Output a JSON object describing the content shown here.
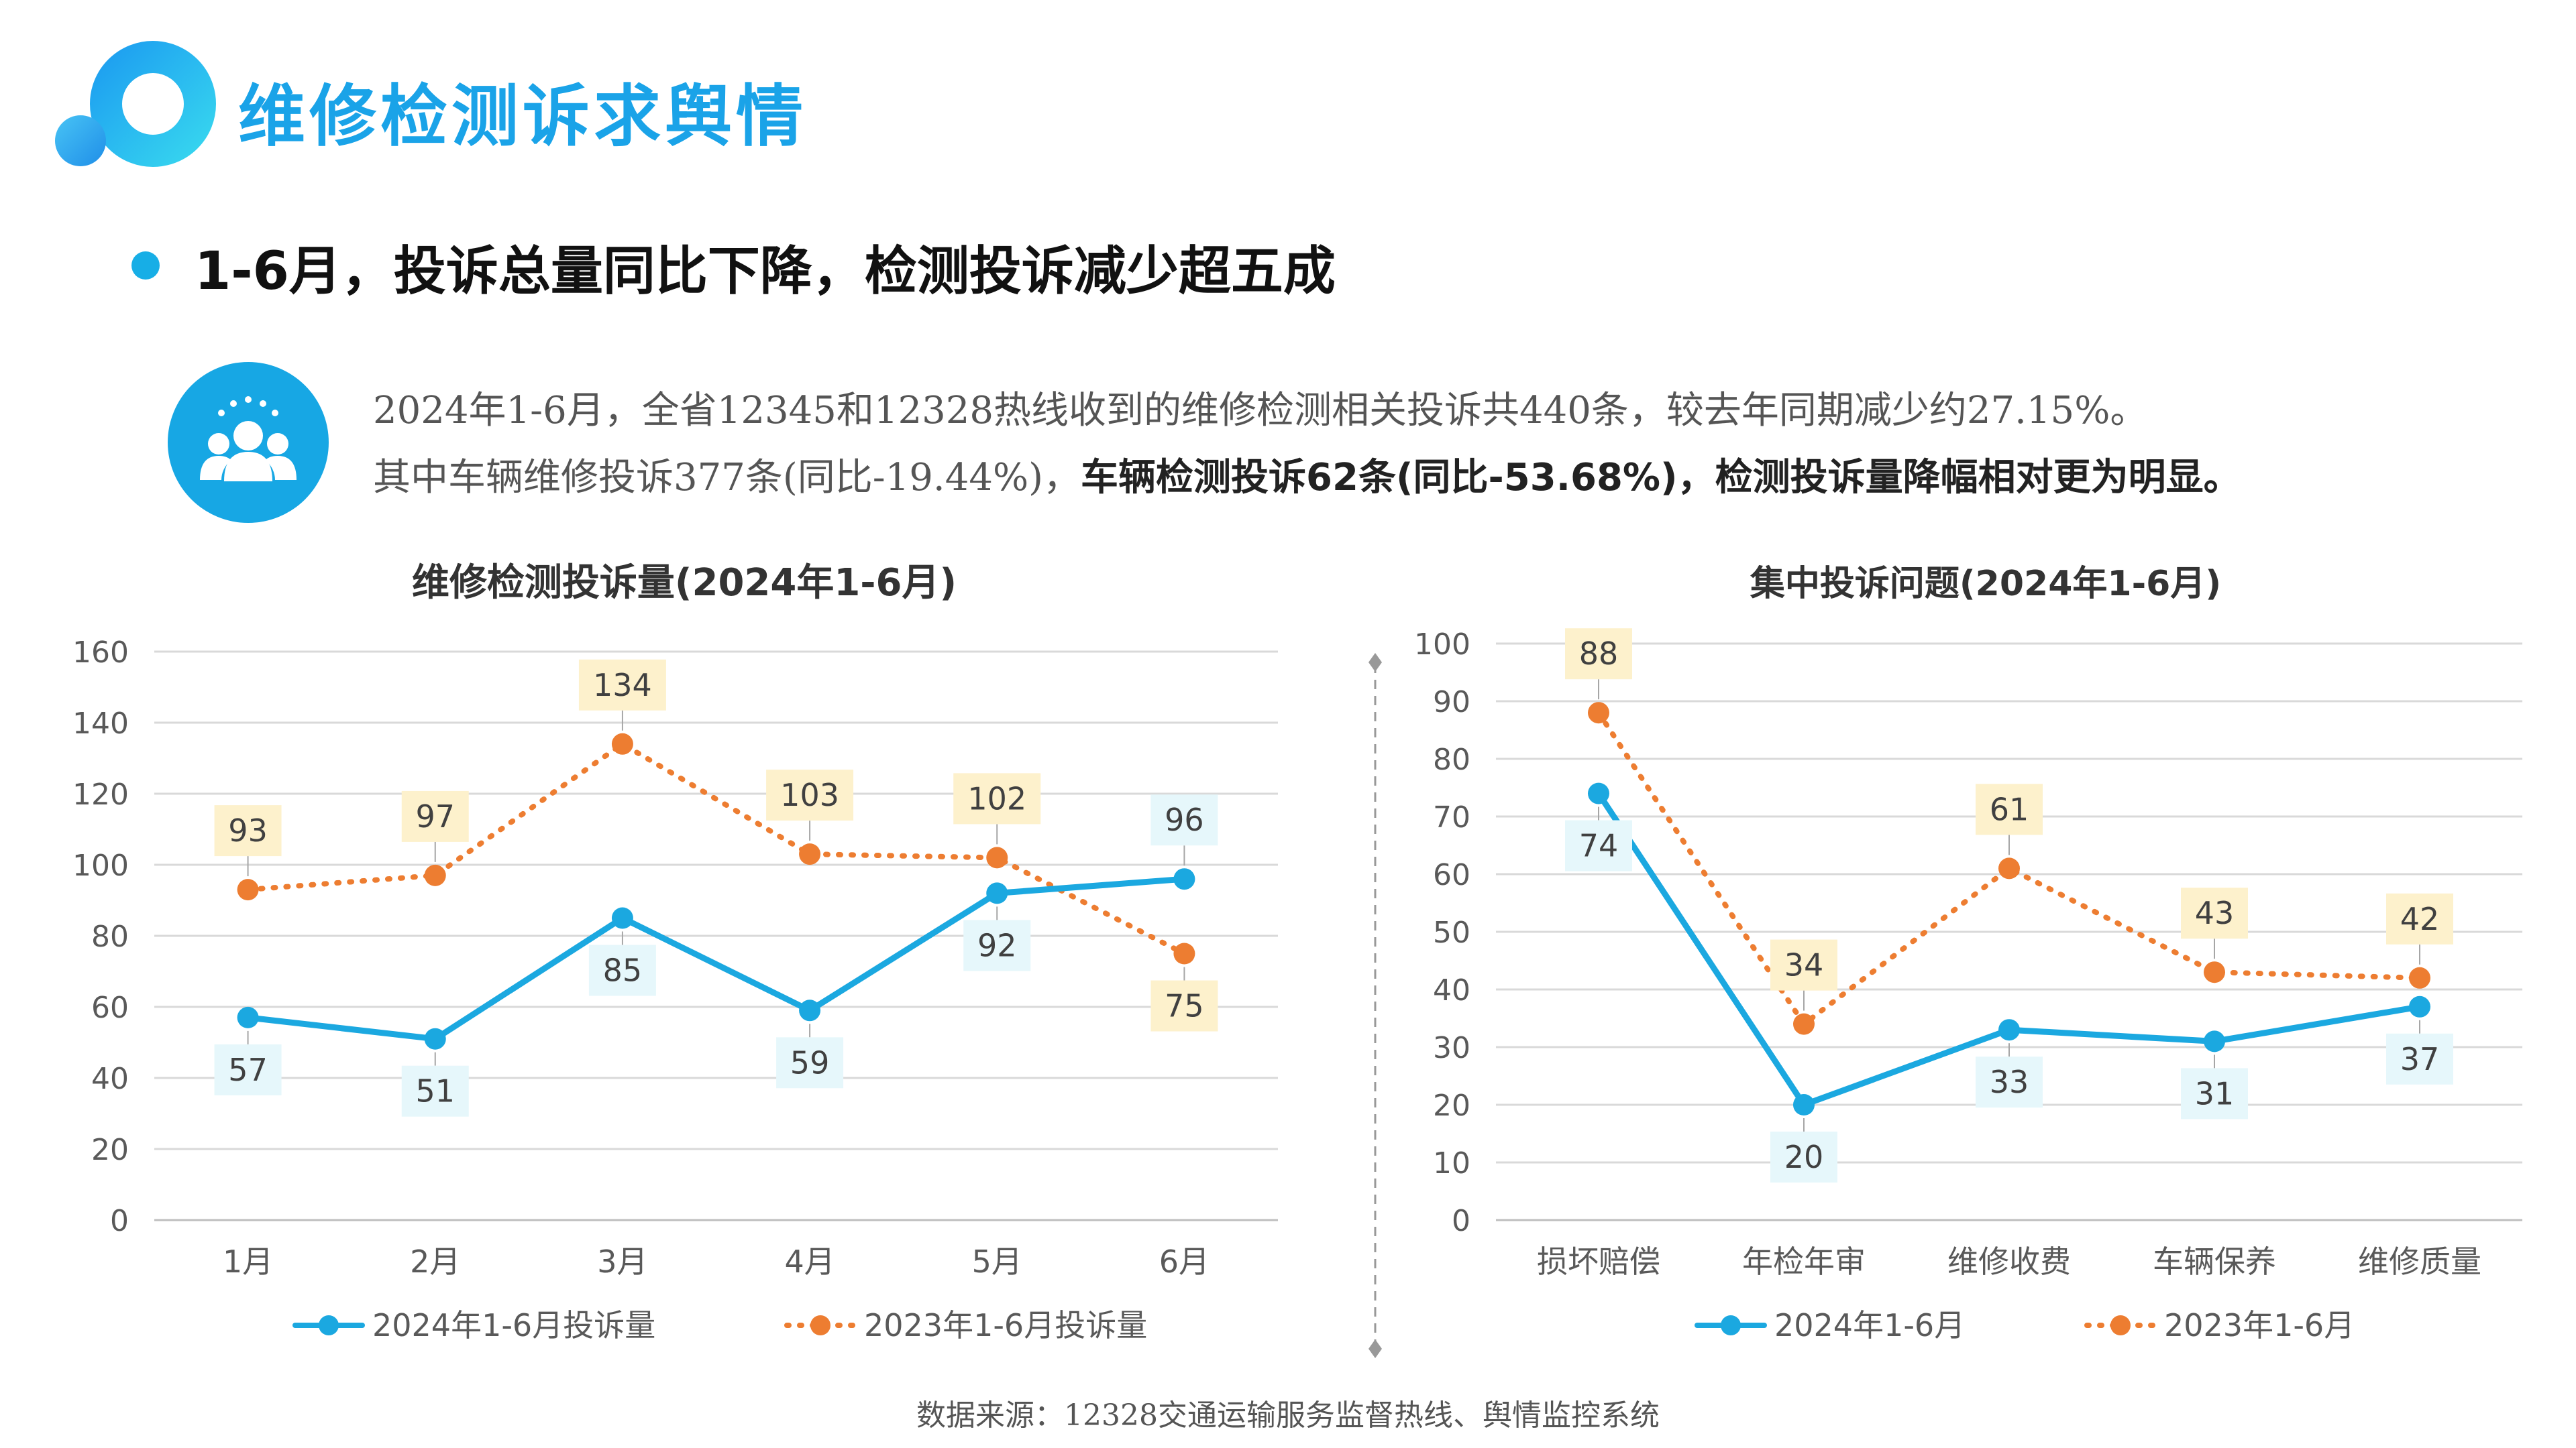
{
  "header": {
    "title": "维修检测诉求舆情",
    "subtitle": "1-6月，投诉总量同比下降，检测投诉减少超五成"
  },
  "summary": {
    "line1": "2024年1-6月，全省12345和12328热线收到的维修检测相关投诉共440条，较去年同期减少约27.15%。",
    "line2_plain": "其中车辆维修投诉377条(同比-19.44%)，",
    "line2_bold": "车辆检测投诉62条(同比-53.68%)，检测投诉量降幅相对更为明显。"
  },
  "footer": {
    "source": "数据来源：12328交通运输服务监督热线、舆情监控系统"
  },
  "colors": {
    "accent": "#1aa3e8",
    "series_2024": "#1ba8e0",
    "series_2023": "#ed7d31",
    "label_2024_bg": "#e6f7fb",
    "label_2023_bg": "#fdf1cc"
  },
  "icons": [
    "logo-rings-icon",
    "people-group-icon"
  ],
  "chart_data": [
    {
      "type": "line",
      "title": "维修检测投诉量(2024年1-6月)",
      "categories": [
        "1月",
        "2月",
        "3月",
        "4月",
        "5月",
        "6月"
      ],
      "ylim": [
        0,
        160
      ],
      "yticks": [
        0,
        20,
        40,
        60,
        80,
        100,
        120,
        140,
        160
      ],
      "grid": true,
      "legend_position": "bottom",
      "series": [
        {
          "name": "2024年1-6月投诉量",
          "values": [
            57,
            51,
            85,
            59,
            92,
            96
          ],
          "style": "solid"
        },
        {
          "name": "2023年1-6月投诉量",
          "values": [
            93,
            97,
            134,
            103,
            102,
            75
          ],
          "style": "dotted"
        }
      ]
    },
    {
      "type": "line",
      "title": "集中投诉问题(2024年1-6月)",
      "categories": [
        "损坏赔偿",
        "年检年审",
        "维修收费",
        "车辆保养",
        "维修质量"
      ],
      "ylim": [
        0,
        100
      ],
      "yticks": [
        0,
        10,
        20,
        30,
        40,
        50,
        60,
        70,
        80,
        90,
        100
      ],
      "grid": true,
      "legend_position": "bottom",
      "series": [
        {
          "name": "2024年1-6月",
          "values": [
            74,
            20,
            33,
            31,
            37
          ],
          "style": "solid"
        },
        {
          "name": "2023年1-6月",
          "values": [
            88,
            34,
            61,
            43,
            42
          ],
          "style": "dotted"
        }
      ]
    }
  ]
}
